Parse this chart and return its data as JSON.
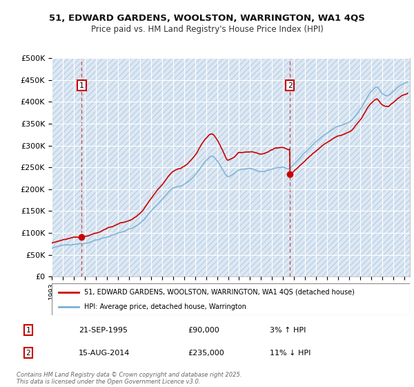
{
  "title_line1": "51, EDWARD GARDENS, WOOLSTON, WARRINGTON, WA1 4QS",
  "title_line2": "Price paid vs. HM Land Registry's House Price Index (HPI)",
  "background_color": "#dce9f5",
  "hatch_color": "#c0cfe0",
  "grid_color": "#ffffff",
  "line1_color": "#cc0000",
  "line2_color": "#7ab0d4",
  "sale1_x": 1995.72,
  "sale1_y": 90000,
  "sale2_x": 2014.62,
  "sale2_y": 235000,
  "vline1_x": 1995.72,
  "vline2_x": 2014.62,
  "xmin": 1993,
  "xmax": 2025.5,
  "ymin": 0,
  "ymax": 500000,
  "yticks": [
    0,
    50000,
    100000,
    150000,
    200000,
    250000,
    300000,
    350000,
    400000,
    450000,
    500000
  ],
  "ytick_labels": [
    "£0",
    "£50K",
    "£100K",
    "£150K",
    "£200K",
    "£250K",
    "£300K",
    "£350K",
    "£400K",
    "£450K",
    "£500K"
  ],
  "footer": "Contains HM Land Registry data © Crown copyright and database right 2025.\nThis data is licensed under the Open Government Licence v3.0.",
  "legend_label1": "51, EDWARD GARDENS, WOOLSTON, WARRINGTON, WA1 4QS (detached house)",
  "legend_label2": "HPI: Average price, detached house, Warrington",
  "sale1_date": "21-SEP-1995",
  "sale1_price": "£90,000",
  "sale1_hpi": "3% ↑ HPI",
  "sale2_date": "15-AUG-2014",
  "sale2_price": "£235,000",
  "sale2_hpi": "11% ↓ HPI"
}
